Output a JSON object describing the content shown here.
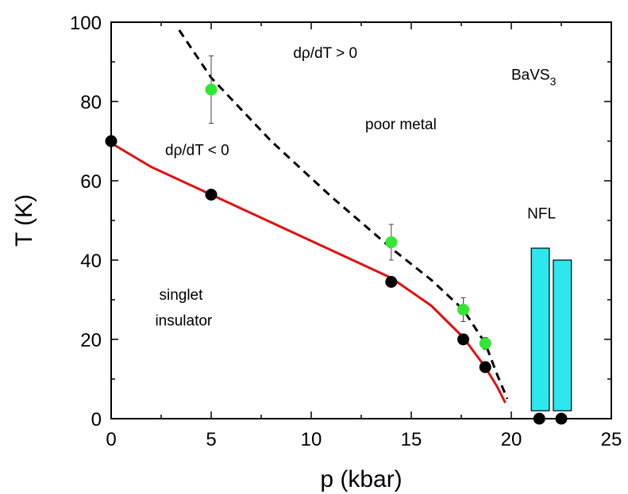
{
  "chart_data": {
    "type": "scatter",
    "xlabel": "p (kbar)",
    "ylabel": "T (K)",
    "xlim": [
      0,
      25
    ],
    "ylim": [
      0,
      100
    ],
    "xticks": [
      0,
      5,
      10,
      15,
      20,
      25
    ],
    "yticks": [
      0,
      20,
      40,
      60,
      80,
      100
    ],
    "grid": false,
    "colors": {
      "black_points": "#000000",
      "green_points": "#33e633",
      "red_line": "#e01010",
      "dashed_line": "#000000",
      "bars": "#2ee6ee"
    },
    "series": [
      {
        "kind": "points",
        "color": "#000000",
        "points": [
          {
            "x": 0,
            "y": 70
          },
          {
            "x": 5,
            "y": 56.5
          },
          {
            "x": 14,
            "y": 34.5
          },
          {
            "x": 17.6,
            "y": 20
          },
          {
            "x": 18.7,
            "y": 13
          },
          {
            "x": 21.4,
            "y": 0
          },
          {
            "x": 22.5,
            "y": 0
          }
        ]
      },
      {
        "kind": "points_with_errors",
        "color": "#33e633",
        "points": [
          {
            "x": 5,
            "y": 83,
            "err": 8.5
          },
          {
            "x": 14,
            "y": 44.5,
            "err": 4.5
          },
          {
            "x": 17.6,
            "y": 27.5,
            "err": 3
          },
          {
            "x": 18.7,
            "y": 19,
            "err": 1.5
          }
        ]
      },
      {
        "kind": "line",
        "style": "solid",
        "color": "#e01010",
        "points": [
          {
            "x": 0,
            "y": 69.5
          },
          {
            "x": 2,
            "y": 63.5
          },
          {
            "x": 5,
            "y": 56.5
          },
          {
            "x": 8,
            "y": 49.5
          },
          {
            "x": 11,
            "y": 42.5
          },
          {
            "x": 14,
            "y": 35.5
          },
          {
            "x": 16,
            "y": 28.5
          },
          {
            "x": 17.6,
            "y": 20.5
          },
          {
            "x": 18.7,
            "y": 13
          },
          {
            "x": 19.3,
            "y": 8
          },
          {
            "x": 19.7,
            "y": 4
          }
        ]
      },
      {
        "kind": "line",
        "style": "dashed",
        "color": "#000000",
        "points": [
          {
            "x": 3.4,
            "y": 98
          },
          {
            "x": 5,
            "y": 86
          },
          {
            "x": 8,
            "y": 70
          },
          {
            "x": 11,
            "y": 56
          },
          {
            "x": 14,
            "y": 43
          },
          {
            "x": 16,
            "y": 35
          },
          {
            "x": 17.6,
            "y": 27.5
          },
          {
            "x": 18.7,
            "y": 19
          },
          {
            "x": 19.3,
            "y": 11
          },
          {
            "x": 19.8,
            "y": 5
          }
        ]
      },
      {
        "kind": "bars",
        "color": "#2ee6ee",
        "bars": [
          {
            "x0": 21.0,
            "x1": 21.9,
            "y0": 2,
            "y1": 43
          },
          {
            "x0": 22.1,
            "x1": 23.0,
            "y0": 2,
            "y1": 40
          }
        ]
      }
    ],
    "annotations": [
      {
        "id": "drho_pos",
        "text": "dρ/dT > 0",
        "x": 9.1,
        "y": 91
      },
      {
        "id": "compound",
        "text": "BaVS",
        "subscript": "3",
        "x": 20.0,
        "y": 85.5
      },
      {
        "id": "poor_metal",
        "text": "poor metal",
        "x": 12.7,
        "y": 73
      },
      {
        "id": "drho_neg",
        "text": "dρ/dT < 0",
        "x": 2.7,
        "y": 66.5
      },
      {
        "id": "nfl",
        "text": "NFL",
        "x": 20.8,
        "y": 50.5
      },
      {
        "id": "singlet",
        "text": "singlet",
        "x": 2.4,
        "y": 30
      },
      {
        "id": "insulator",
        "text": "insulator",
        "x": 2.2,
        "y": 23.5
      }
    ]
  }
}
